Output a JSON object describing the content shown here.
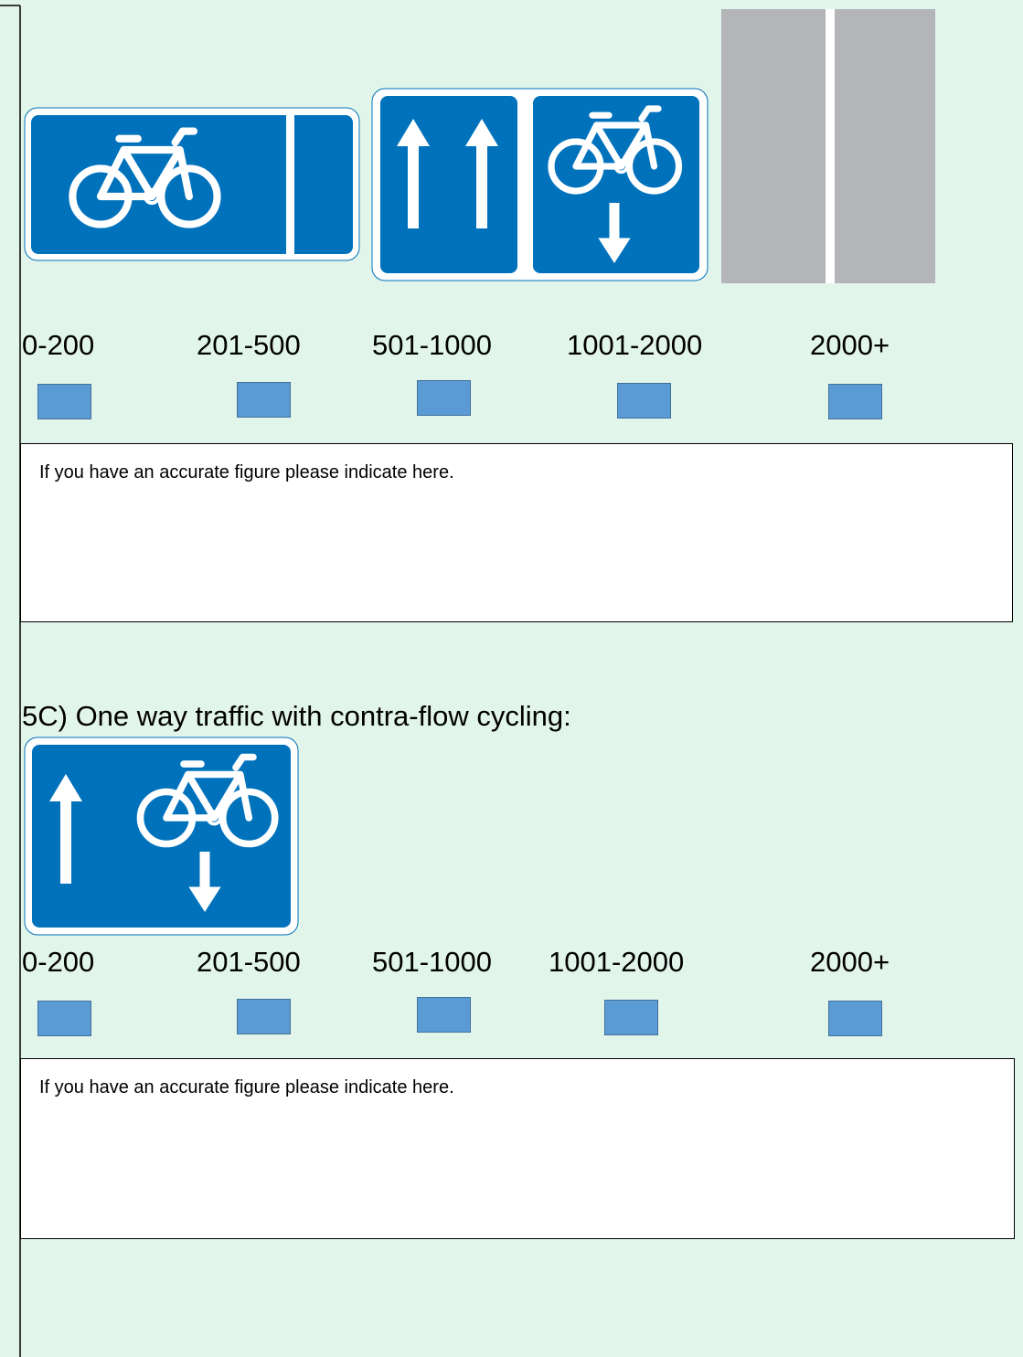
{
  "section_a": {
    "options": [
      "0-200",
      "201-500",
      "501-1000",
      "1001-2000",
      "2000+"
    ],
    "note": "If you have an accurate figure please indicate here."
  },
  "section_c": {
    "heading": "5C) One way traffic with contra-flow cycling:",
    "options": [
      "0-200",
      "201-500",
      "501-1000",
      "1001-2000",
      "2000+"
    ],
    "note": "If you have an accurate figure please indicate here."
  }
}
